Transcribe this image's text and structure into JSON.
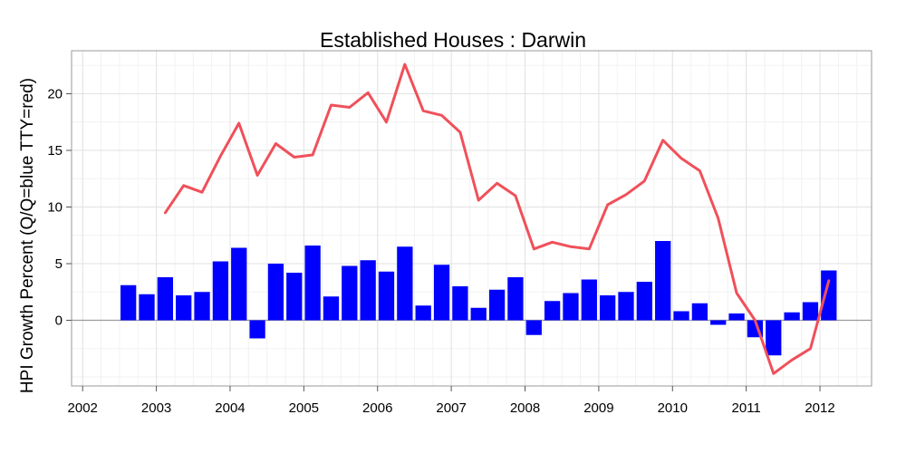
{
  "chart_data": {
    "type": "bar",
    "title": "Established Houses :  Darwin",
    "xlabel": "",
    "ylabel": "HPI Growth Percent (Q/Q=blue TTY=red)",
    "xlim": [
      2001.85,
      2012.7
    ],
    "ylim": [
      -5.8,
      23.8
    ],
    "x_ticks": [
      2002,
      2003,
      2004,
      2005,
      2006,
      2007,
      2008,
      2009,
      2010,
      2011,
      2012
    ],
    "x_tick_labels": [
      "2002",
      "2003",
      "2004",
      "2005",
      "2006",
      "2007",
      "2008",
      "2009",
      "2010",
      "2011",
      "2012"
    ],
    "y_ticks": [
      0,
      5,
      10,
      15,
      20
    ],
    "y_tick_labels": [
      "0",
      "5",
      "10",
      "15",
      "20"
    ],
    "grid": true,
    "zero_line": true,
    "series": [
      {
        "type": "bar",
        "color": "#0000FF",
        "x": [
          2002.62,
          2002.87,
          2003.12,
          2003.37,
          2003.62,
          2003.87,
          2004.12,
          2004.37,
          2004.62,
          2004.87,
          2005.12,
          2005.37,
          2005.62,
          2005.87,
          2006.12,
          2006.37,
          2006.62,
          2006.87,
          2007.12,
          2007.37,
          2007.62,
          2007.87,
          2008.12,
          2008.37,
          2008.62,
          2008.87,
          2009.12,
          2009.37,
          2009.62,
          2009.87,
          2010.12,
          2010.37,
          2010.62,
          2010.87,
          2011.12,
          2011.37,
          2011.62,
          2011.87,
          2012.12
        ],
        "values": [
          3.1,
          2.3,
          3.8,
          2.2,
          2.5,
          5.2,
          6.4,
          -1.6,
          5.0,
          4.2,
          6.6,
          2.1,
          4.8,
          5.3,
          4.3,
          6.5,
          1.3,
          4.9,
          3.0,
          1.1,
          2.7,
          3.8,
          -1.3,
          1.7,
          2.4,
          3.6,
          2.2,
          2.5,
          3.4,
          7.0,
          0.8,
          1.5,
          -0.4,
          0.6,
          -1.5,
          -3.1,
          0.7,
          1.6,
          4.4
        ]
      },
      {
        "type": "line",
        "color": "#F0505A",
        "x": [
          2003.12,
          2003.37,
          2003.62,
          2003.87,
          2004.12,
          2004.37,
          2004.62,
          2004.87,
          2005.12,
          2005.37,
          2005.62,
          2005.87,
          2006.12,
          2006.37,
          2006.62,
          2006.87,
          2007.12,
          2007.37,
          2007.62,
          2007.87,
          2008.12,
          2008.37,
          2008.62,
          2008.87,
          2009.12,
          2009.37,
          2009.62,
          2009.87,
          2010.12,
          2010.37,
          2010.62,
          2010.87,
          2011.12,
          2011.37,
          2011.62,
          2011.87,
          2012.12
        ],
        "values": [
          9.5,
          11.9,
          11.3,
          14.5,
          17.4,
          12.8,
          15.6,
          14.4,
          14.6,
          19.0,
          18.8,
          20.1,
          17.5,
          22.6,
          18.5,
          18.1,
          16.6,
          10.6,
          12.1,
          11.0,
          6.3,
          6.9,
          6.5,
          6.3,
          10.2,
          11.1,
          12.3,
          15.9,
          14.3,
          13.2,
          9.0,
          2.4,
          0.0,
          -4.7,
          -3.5,
          -2.5,
          3.5
        ]
      }
    ]
  }
}
